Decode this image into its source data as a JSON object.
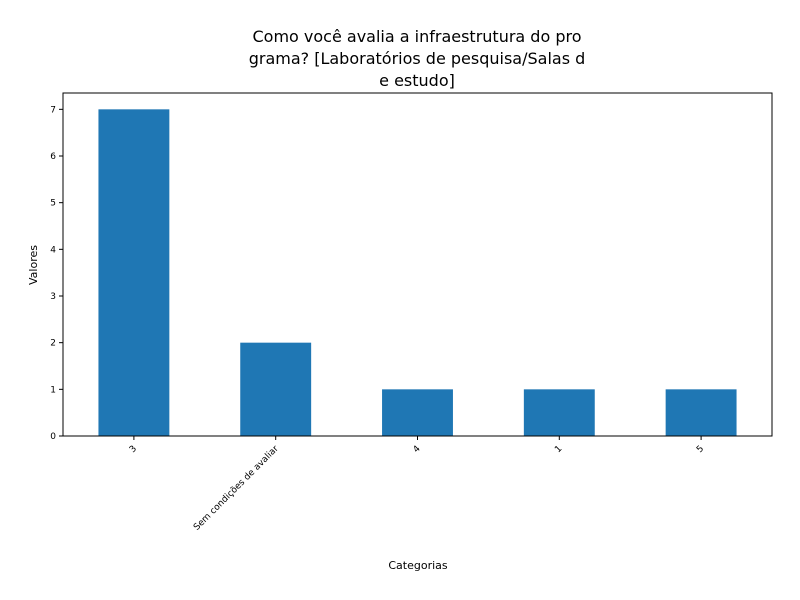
{
  "chart_data": {
    "type": "bar",
    "title_lines": [
      "Como você avalia a infraestrutura do pro",
      "grama? [Laboratórios de pesquisa/Salas d",
      "e estudo]"
    ],
    "xlabel": "Categorias",
    "ylabel": "Valores",
    "categories": [
      "3",
      "Sem condições de avaliar",
      "4",
      "1",
      "5"
    ],
    "values": [
      7,
      2,
      1,
      1,
      1
    ],
    "ylim": [
      0,
      7.35
    ],
    "yticks": [
      "0",
      "1",
      "2",
      "3",
      "4",
      "5",
      "6",
      "7"
    ],
    "grid": false,
    "bar_color": "#1f77b4"
  }
}
